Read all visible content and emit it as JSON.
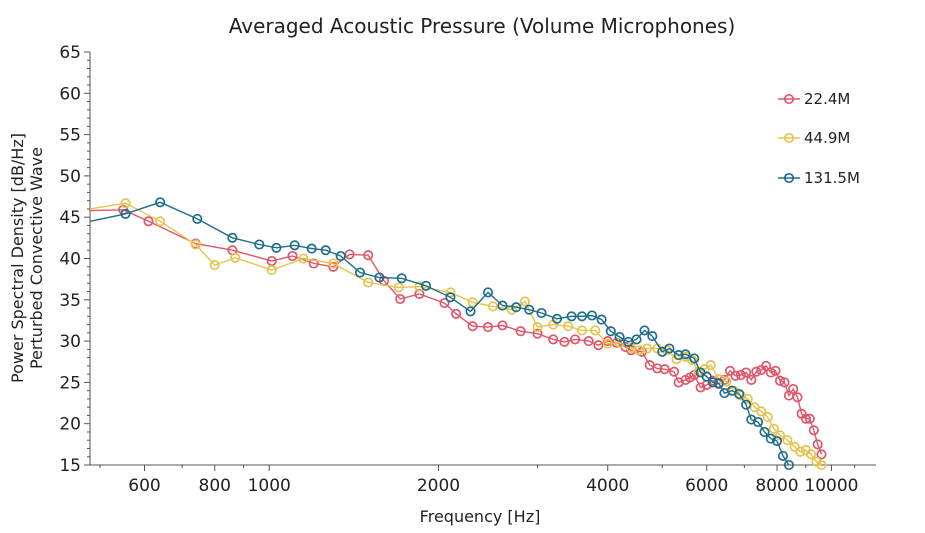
{
  "chart_data": {
    "type": "line",
    "title": "Averaged Acoustic Pressure (Volume Microphones)",
    "xlabel": "Frequency [Hz]",
    "ylabel_lines": [
      "Power Spectral Density [dB/Hz]",
      "Perturbed Convective Wave"
    ],
    "x_scale": "log",
    "xlim": [
      480,
      12000
    ],
    "ylim": [
      15,
      65
    ],
    "x_ticks": [
      {
        "value": 600,
        "label": "600"
      },
      {
        "value": 800,
        "label": "800"
      },
      {
        "value": 1000,
        "label": "1000"
      },
      {
        "value": 2000,
        "label": "2000"
      },
      {
        "value": 4000,
        "label": "4000"
      },
      {
        "value": 6000,
        "label": "6000"
      },
      {
        "value": 8000,
        "label": "8000"
      },
      {
        "value": 10000,
        "label": "10000"
      }
    ],
    "y_ticks": [
      {
        "value": 15,
        "label": "15"
      },
      {
        "value": 20,
        "label": "20"
      },
      {
        "value": 25,
        "label": "25"
      },
      {
        "value": 30,
        "label": "30"
      },
      {
        "value": 35,
        "label": "35"
      },
      {
        "value": 40,
        "label": "40"
      },
      {
        "value": 45,
        "label": "45"
      },
      {
        "value": 50,
        "label": "50"
      },
      {
        "value": 55,
        "label": "55"
      },
      {
        "value": 60,
        "label": "60"
      },
      {
        "value": 65,
        "label": "65"
      }
    ],
    "grid": false,
    "legend_position": "top-right",
    "series": [
      {
        "name": "22.4M",
        "color": "#e0566a",
        "x": [
          480,
          550,
          610,
          740,
          860,
          1010,
          1100,
          1200,
          1300,
          1390,
          1500,
          1600,
          1710,
          1850,
          2050,
          2150,
          2300,
          2450,
          2600,
          2800,
          3000,
          3200,
          3350,
          3500,
          3700,
          3850,
          4000,
          4150,
          4300,
          4400,
          4600,
          4750,
          4900,
          5050,
          5250,
          5350,
          5500,
          5600,
          5700,
          5850,
          6000,
          6150,
          6300,
          6450,
          6600,
          6750,
          6900,
          7050,
          7200,
          7350,
          7500,
          7650,
          7800,
          7950,
          8100,
          8250,
          8400,
          8550,
          8700,
          8850,
          9000,
          9150,
          9300,
          9450,
          9600
        ],
        "y": [
          45.8,
          45.9,
          44.5,
          41.8,
          41.0,
          39.7,
          40.3,
          39.4,
          39.0,
          40.5,
          40.4,
          37.3,
          35.1,
          35.7,
          34.6,
          33.3,
          31.8,
          31.7,
          31.9,
          31.2,
          30.9,
          30.2,
          29.9,
          30.2,
          30.0,
          29.5,
          30.0,
          29.8,
          29.3,
          28.9,
          28.7,
          27.1,
          26.7,
          26.6,
          26.3,
          25.0,
          25.3,
          25.6,
          25.9,
          24.4,
          24.7,
          25.2,
          24.8,
          25.3,
          26.4,
          25.8,
          25.9,
          26.2,
          25.3,
          26.3,
          26.5,
          27.0,
          26.2,
          26.4,
          25.2,
          25.0,
          23.4,
          24.2,
          23.2,
          21.2,
          20.6,
          20.6,
          19.2,
          17.5,
          16.3
        ]
      },
      {
        "name": "44.9M",
        "color": "#e8c24f",
        "x": [
          480,
          555,
          640,
          740,
          800,
          870,
          1010,
          1150,
          1300,
          1500,
          1700,
          1850,
          2100,
          2300,
          2500,
          2700,
          2850,
          3000,
          3200,
          3400,
          3600,
          3800,
          4000,
          4200,
          4400,
          4550,
          4700,
          4900,
          5100,
          5300,
          5500,
          5650,
          5800,
          5950,
          6100,
          6300,
          6500,
          6700,
          6900,
          7100,
          7300,
          7500,
          7700,
          7900,
          8100,
          8350,
          8600,
          8800,
          9000,
          9200,
          9400,
          9600
        ],
        "y": [
          46.0,
          46.7,
          44.5,
          41.7,
          39.2,
          40.1,
          38.6,
          40.0,
          39.4,
          37.1,
          36.5,
          36.6,
          35.9,
          34.7,
          34.2,
          33.8,
          34.8,
          31.7,
          32.0,
          31.8,
          31.3,
          31.3,
          29.7,
          29.8,
          29.2,
          28.9,
          29.1,
          29.1,
          28.9,
          27.8,
          28.1,
          27.7,
          26.3,
          26.6,
          27.1,
          25.4,
          25.1,
          24.0,
          23.4,
          23.0,
          22.0,
          21.5,
          20.8,
          19.4,
          18.6,
          18.0,
          17.2,
          16.6,
          16.8,
          16.3,
          15.4,
          15.0
        ]
      },
      {
        "name": "131.5M",
        "color": "#1f6e8c",
        "x": [
          480,
          555,
          640,
          745,
          860,
          960,
          1030,
          1110,
          1190,
          1260,
          1340,
          1450,
          1570,
          1720,
          1900,
          2100,
          2280,
          2450,
          2600,
          2750,
          2900,
          3050,
          3250,
          3450,
          3600,
          3750,
          3900,
          4050,
          4200,
          4350,
          4500,
          4650,
          4800,
          5000,
          5150,
          5350,
          5500,
          5700,
          5850,
          6000,
          6150,
          6300,
          6450,
          6650,
          6850,
          7050,
          7200,
          7400,
          7600,
          7800,
          8000,
          8200,
          8400
        ],
        "y": [
          44.5,
          45.4,
          46.8,
          44.8,
          42.5,
          41.7,
          41.3,
          41.6,
          41.2,
          41.0,
          40.3,
          38.3,
          37.7,
          37.6,
          36.7,
          35.3,
          33.6,
          35.9,
          34.3,
          34.1,
          33.8,
          33.4,
          32.7,
          33.0,
          33.0,
          33.1,
          32.6,
          31.2,
          30.5,
          29.9,
          30.2,
          31.3,
          30.6,
          28.7,
          29.1,
          28.3,
          28.4,
          27.9,
          26.2,
          25.7,
          25.0,
          24.9,
          23.7,
          24.0,
          23.6,
          22.3,
          20.5,
          20.2,
          19.0,
          18.2,
          17.9,
          16.1,
          15.0
        ]
      }
    ]
  }
}
